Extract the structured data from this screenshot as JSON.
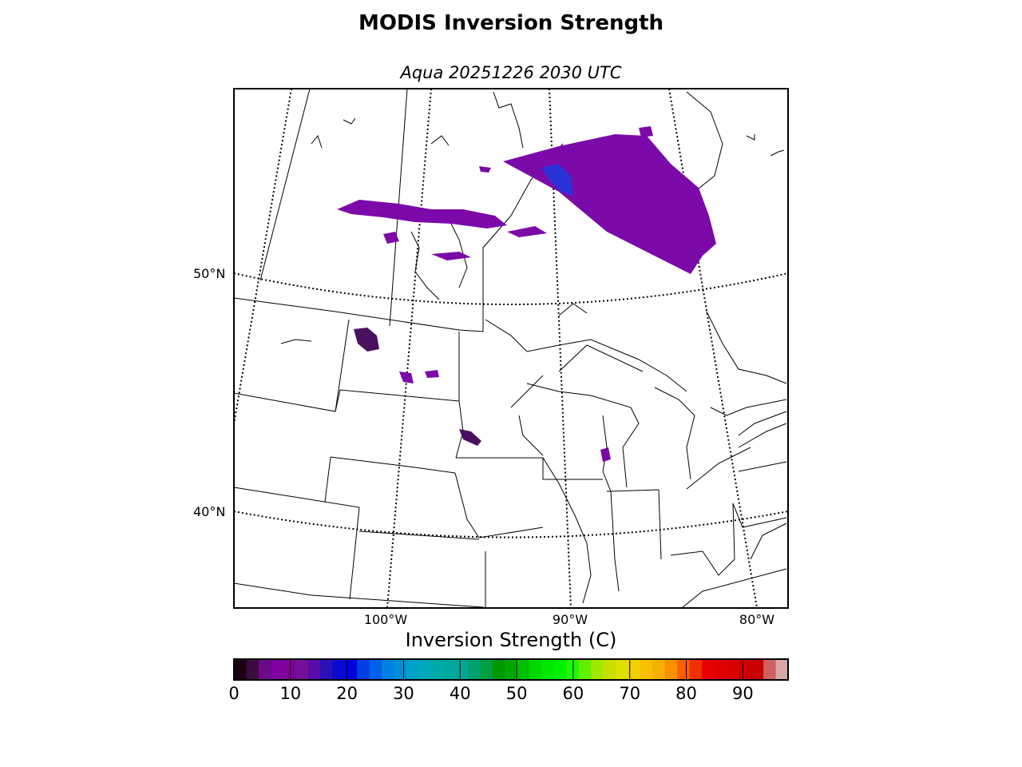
{
  "figure": {
    "title": "MODIS Inversion Strength",
    "subtitle": "Aqua 20251226 2030 UTC"
  },
  "map": {
    "latitude_labels": [
      "50°N",
      "40°N"
    ],
    "longitude_labels": [
      "100°W",
      "90°W",
      "80°W"
    ],
    "data_color": "#7b0aa8",
    "data_color_blue": "#2a33d6",
    "data_color_dark": "#4a1060"
  },
  "colorbar": {
    "title": "Inversion Strength (C)",
    "range": [
      0,
      98
    ],
    "tick_labels": [
      "0",
      "10",
      "20",
      "30",
      "40",
      "50",
      "60",
      "70",
      "80",
      "90"
    ],
    "colors": [
      "#1a0010",
      "#3a0a40",
      "#6a0a88",
      "#7f00a0",
      "#800098",
      "#75109a",
      "#5a0aa8",
      "#2a10b8",
      "#0a0ad0",
      "#0000e0",
      "#0040e0",
      "#0060e8",
      "#0080e0",
      "#0090d8",
      "#00a0c8",
      "#00a8b8",
      "#00aaa8",
      "#00a8a0",
      "#00a898",
      "#00a070",
      "#00a040",
      "#009800",
      "#00a800",
      "#00c000",
      "#00d800",
      "#00e800",
      "#00f000",
      "#20f800",
      "#60f000",
      "#a0e800",
      "#c8e000",
      "#e0e000",
      "#f0d000",
      "#f8c000",
      "#f8b000",
      "#f89000",
      "#f86000",
      "#f03000",
      "#e80000",
      "#e00000",
      "#d80000",
      "#d00000",
      "#c80000",
      "#d06060",
      "#d8a8a8"
    ]
  }
}
